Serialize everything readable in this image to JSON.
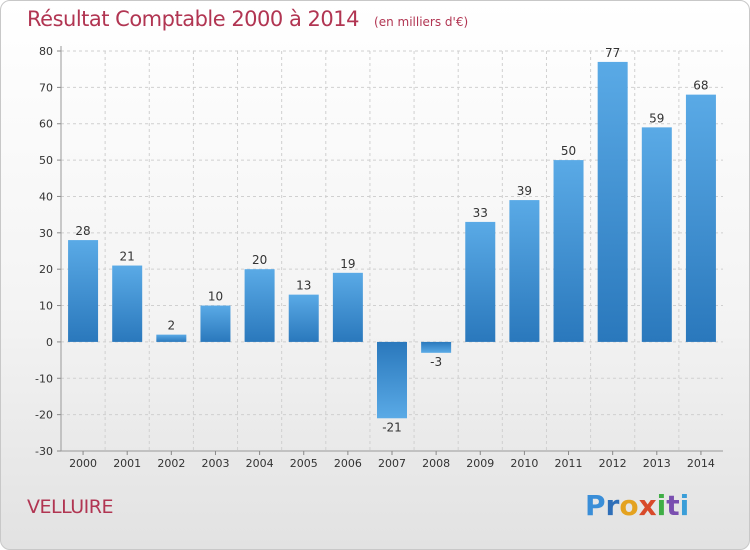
{
  "header": {
    "title": "Résultat Comptable 2000 à 2014",
    "unit": "(en milliers d'€)"
  },
  "footer": {
    "commune": "VELLUIRE",
    "logo_letters": [
      "P",
      "r",
      "o",
      "x",
      "i",
      "t",
      "i"
    ],
    "logo_colors": [
      "#3a8ed8",
      "#2f6fb8",
      "#e4a21f",
      "#d84a2a",
      "#3fae46",
      "#7a4fb0",
      "#3a9ed8"
    ]
  },
  "chart_data": {
    "type": "bar",
    "categories": [
      "2000",
      "2001",
      "2002",
      "2003",
      "2004",
      "2005",
      "2006",
      "2007",
      "2008",
      "2009",
      "2010",
      "2011",
      "2012",
      "2013",
      "2014"
    ],
    "values": [
      28,
      21,
      2,
      10,
      20,
      13,
      19,
      -21,
      -3,
      33,
      39,
      50,
      77,
      59,
      68
    ],
    "title": "Résultat Comptable 2000 à 2014",
    "subtitle": "(en milliers d'€)",
    "ylim": [
      -30,
      80
    ],
    "yticks": [
      -30,
      -20,
      -10,
      0,
      10,
      20,
      30,
      40,
      50,
      60,
      70,
      80
    ],
    "grid": true,
    "bar_color": "#3a8fd4"
  }
}
